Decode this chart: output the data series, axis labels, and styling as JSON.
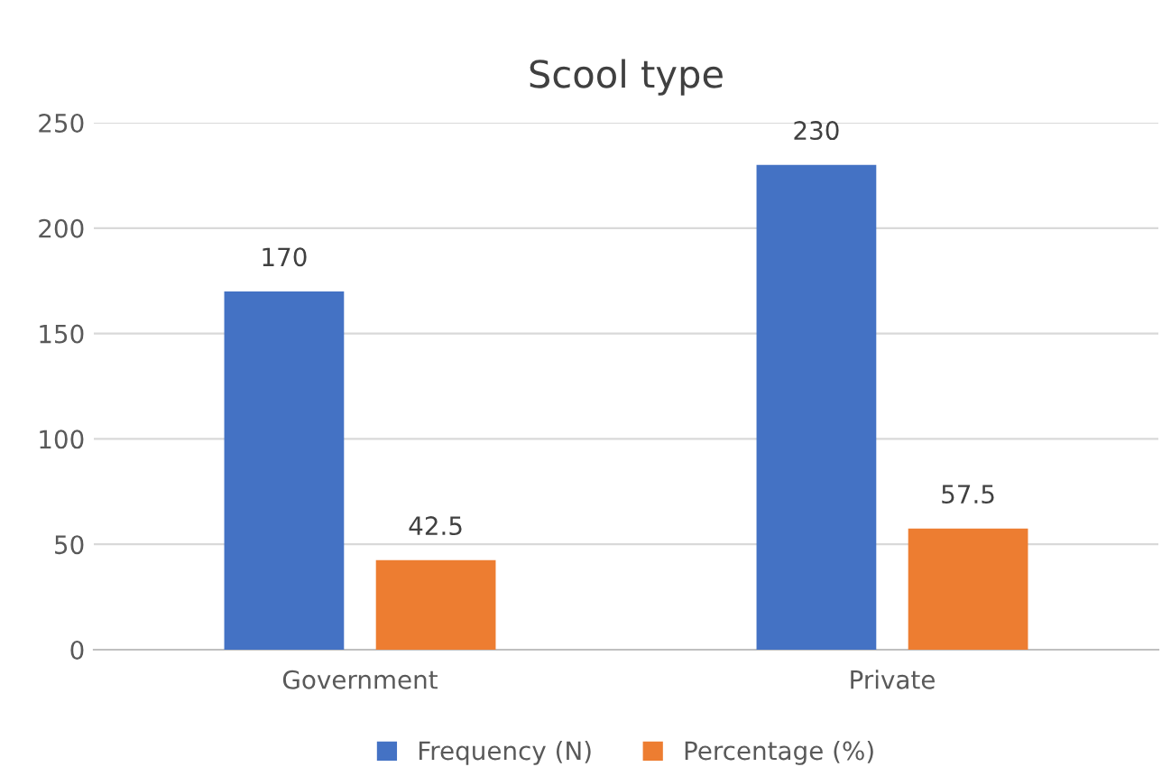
{
  "chart_data": {
    "type": "bar",
    "title": "Scool type",
    "categories": [
      "Government",
      "Private"
    ],
    "series": [
      {
        "name": "Frequency (N)",
        "color": "#4472c4",
        "values": [
          170,
          230
        ]
      },
      {
        "name": "Percentage (%)",
        "color": "#ed7d31",
        "values": [
          42.5,
          57.5
        ]
      }
    ],
    "ylim": [
      0,
      250
    ],
    "yticks": [
      0,
      50,
      100,
      150,
      200,
      250
    ],
    "grid": "y",
    "legend": "bottom",
    "data_labels": true
  }
}
